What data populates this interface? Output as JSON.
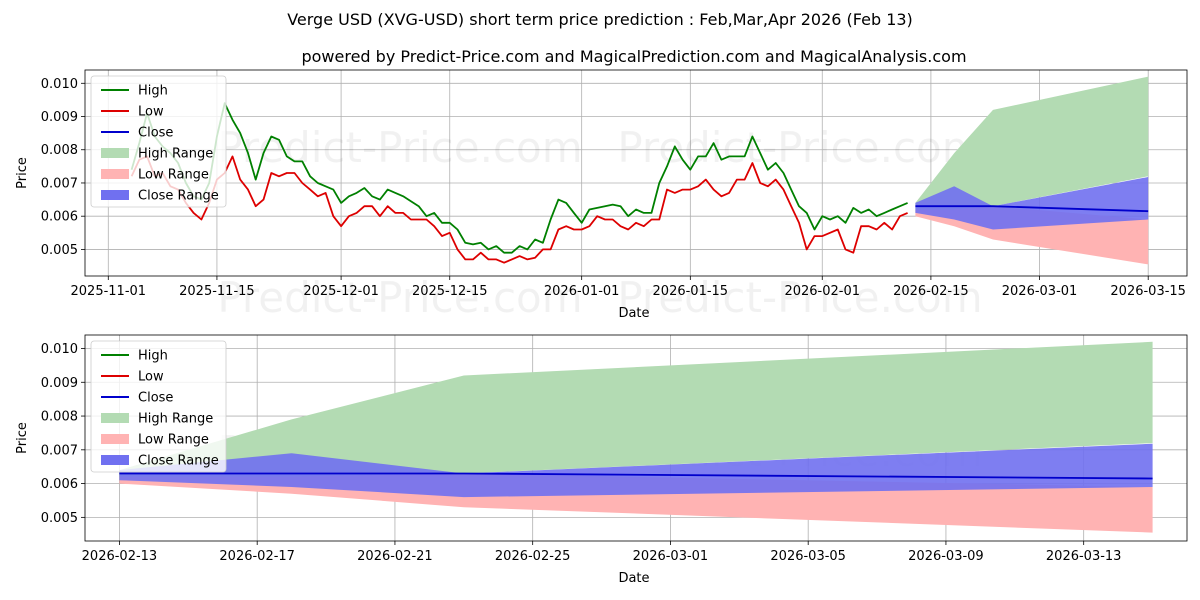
{
  "chart_data": [
    {
      "type": "line",
      "title": "Verge USD (XVG-USD) short term price prediction : Feb,Mar,Apr 2026 (Feb 13)",
      "subtitle": "powered by Predict-Price.com and MagicalPrediction.com and MagicalAnalysis.com",
      "watermark": "Predict-Price.com",
      "xlabel": "Date",
      "ylabel": "Price",
      "xlim": [
        "2025-10-29",
        "2026-03-20"
      ],
      "ylim": [
        0.0042,
        0.0104
      ],
      "xticks": [
        "2025-11-01",
        "2025-11-15",
        "2025-12-01",
        "2025-12-15",
        "2026-01-01",
        "2026-01-15",
        "2026-02-01",
        "2026-02-15",
        "2026-03-01",
        "2026-03-15"
      ],
      "yticks": [
        "0.005",
        "0.006",
        "0.007",
        "0.008",
        "0.009",
        "0.010"
      ],
      "legend_position": "top-left",
      "legend": [
        "High",
        "Low",
        "Close",
        "High Range",
        "Low Range",
        "Close Range"
      ],
      "colors": {
        "high": "#008000",
        "low": "#dd0000",
        "close": "#0000cc",
        "high_range": "#b3dbb3",
        "low_range": "#ffb3b3",
        "close_range": "#7070f0"
      },
      "history_start": "2025-11-04",
      "high": [
        0.0074,
        0.0082,
        0.0091,
        0.0084,
        0.0081,
        0.0079,
        0.0076,
        0.007,
        0.0066,
        0.0065,
        0.007,
        0.0084,
        0.0094,
        0.0089,
        0.0085,
        0.0079,
        0.0071,
        0.0079,
        0.0084,
        0.0083,
        0.0078,
        0.00765,
        0.00765,
        0.0072,
        0.007,
        0.0069,
        0.0068,
        0.0064,
        0.0066,
        0.0067,
        0.00685,
        0.0066,
        0.0065,
        0.0068,
        0.0067,
        0.0066,
        0.00645,
        0.0063,
        0.006,
        0.0061,
        0.0058,
        0.0058,
        0.0056,
        0.0052,
        0.00515,
        0.0052,
        0.005,
        0.0051,
        0.0049,
        0.0049,
        0.0051,
        0.005,
        0.0053,
        0.0052,
        0.0059,
        0.0065,
        0.0064,
        0.0061,
        0.0058,
        0.0062,
        0.00625,
        0.0063,
        0.00635,
        0.0063,
        0.006,
        0.0062,
        0.0061,
        0.0061,
        0.007,
        0.0075,
        0.0081,
        0.0077,
        0.0074,
        0.0078,
        0.0078,
        0.0082,
        0.0077,
        0.0078,
        0.0078,
        0.0078,
        0.0084,
        0.0079,
        0.0074,
        0.0076,
        0.0073,
        0.0068,
        0.0063,
        0.0061,
        0.0056,
        0.006,
        0.0059,
        0.006,
        0.0058,
        0.00625,
        0.0061,
        0.0062,
        0.006,
        0.0061,
        0.0062,
        0.0063,
        0.0064
      ],
      "low": [
        0.0072,
        0.0077,
        0.0078,
        0.0072,
        0.0073,
        0.0069,
        0.0068,
        0.0064,
        0.0061,
        0.0059,
        0.0064,
        0.0071,
        0.0073,
        0.0078,
        0.0071,
        0.0068,
        0.0063,
        0.0065,
        0.0073,
        0.0072,
        0.0073,
        0.0073,
        0.007,
        0.0068,
        0.0066,
        0.0067,
        0.006,
        0.0057,
        0.006,
        0.0061,
        0.0063,
        0.0063,
        0.006,
        0.0063,
        0.0061,
        0.0061,
        0.0059,
        0.0059,
        0.0059,
        0.0057,
        0.0054,
        0.0055,
        0.005,
        0.0047,
        0.0047,
        0.0049,
        0.0047,
        0.0047,
        0.0046,
        0.0047,
        0.0048,
        0.0047,
        0.00475,
        0.005,
        0.005,
        0.0056,
        0.0057,
        0.0056,
        0.0056,
        0.0057,
        0.006,
        0.0059,
        0.0059,
        0.0057,
        0.0056,
        0.0058,
        0.0057,
        0.0059,
        0.0059,
        0.0068,
        0.0067,
        0.0068,
        0.0068,
        0.0069,
        0.0071,
        0.0068,
        0.0066,
        0.0067,
        0.0071,
        0.0071,
        0.0076,
        0.007,
        0.0069,
        0.0071,
        0.0068,
        0.0063,
        0.0058,
        0.005,
        0.0054,
        0.0054,
        0.0055,
        0.0056,
        0.005,
        0.0049,
        0.0057,
        0.0057,
        0.0056,
        0.0058,
        0.0056,
        0.006,
        0.0061
      ],
      "forecast": {
        "dates": [
          "2026-02-13",
          "2026-02-18",
          "2026-02-23",
          "2026-03-15"
        ],
        "high_range": [
          [
            0.0061,
            0.0064
          ],
          [
            0.0062,
            0.0079
          ],
          [
            0.0063,
            0.0092
          ],
          [
            0.0072,
            0.0102
          ]
        ],
        "low_range": [
          [
            0.006,
            0.0062
          ],
          [
            0.0057,
            0.0062
          ],
          [
            0.0053,
            0.0063
          ],
          [
            0.00455,
            0.0059
          ]
        ],
        "close_range": [
          [
            0.0061,
            0.0064
          ],
          [
            0.0059,
            0.0069
          ],
          [
            0.0056,
            0.0063
          ],
          [
            0.0059,
            0.00718
          ]
        ],
        "close": [
          0.0063,
          0.0063,
          0.0063,
          0.00615
        ]
      }
    },
    {
      "type": "line",
      "xlabel": "Date",
      "ylabel": "Price",
      "xlim": [
        "2026-02-12",
        "2026-03-16"
      ],
      "ylim": [
        0.0043,
        0.0104
      ],
      "xticks": [
        "2026-02-13",
        "2026-02-17",
        "2026-02-21",
        "2026-02-25",
        "2026-03-01",
        "2026-03-05",
        "2026-03-09",
        "2026-03-13"
      ],
      "yticks": [
        "0.005",
        "0.006",
        "0.007",
        "0.008",
        "0.009",
        "0.010"
      ],
      "legend_position": "top-left",
      "legend": [
        "High",
        "Low",
        "Close",
        "High Range",
        "Low Range",
        "Close Range"
      ]
    }
  ]
}
